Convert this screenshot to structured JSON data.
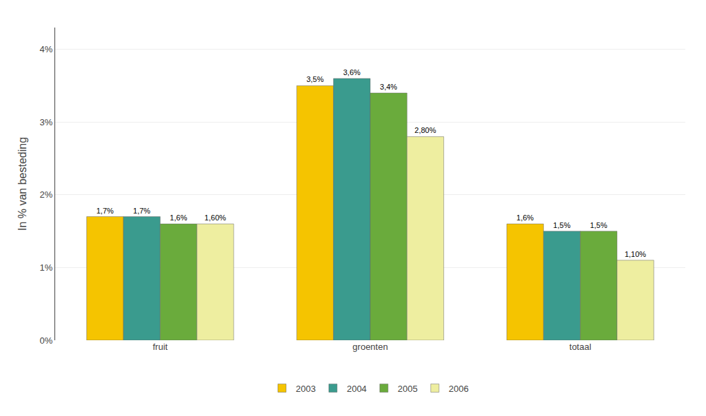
{
  "chart_data": {
    "type": "bar",
    "categories": [
      "fruit",
      "groenten",
      "totaal"
    ],
    "series": [
      {
        "name": "2003",
        "color": "#F5C400",
        "values": [
          1.7,
          3.5,
          1.6
        ],
        "value_labels": [
          "1,7%",
          "3,5%",
          "1,6%"
        ]
      },
      {
        "name": "2004",
        "color": "#3A9B8E",
        "values": [
          1.7,
          3.6,
          1.5
        ],
        "value_labels": [
          "1,7%",
          "3,6%",
          "1,5%"
        ]
      },
      {
        "name": "2005",
        "color": "#6AAB3C",
        "values": [
          1.6,
          3.4,
          1.5
        ],
        "value_labels": [
          "1,6%",
          "3,4%",
          "1,5%"
        ]
      },
      {
        "name": "2006",
        "color": "#EEEEA0",
        "values": [
          1.6,
          2.8,
          1.1
        ],
        "value_labels": [
          "1,60%",
          "2,80%",
          "1,10%"
        ]
      }
    ],
    "ylabel": "In % van besteding",
    "ylim": [
      0,
      4.3
    ],
    "yticks": [
      {
        "value": 0,
        "label": "0%"
      },
      {
        "value": 1,
        "label": "1%"
      },
      {
        "value": 2,
        "label": "2%"
      },
      {
        "value": 3,
        "label": "3%"
      },
      {
        "value": 4,
        "label": "4%"
      }
    ],
    "grid": true,
    "legend": "bottom",
    "data_labels": true
  }
}
